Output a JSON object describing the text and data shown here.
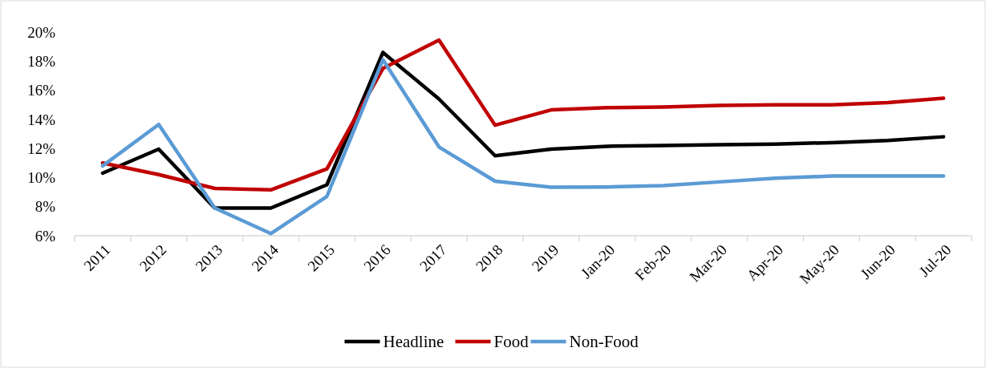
{
  "chart_data": {
    "type": "line",
    "categories": [
      "2011",
      "2012",
      "2013",
      "2014",
      "2015",
      "2016",
      "2017",
      "2018",
      "2019",
      "Jan-20",
      "Feb-20",
      "Mar-20",
      "Apr-20",
      "May-20",
      "Jun-20",
      "Jul-20"
    ],
    "series": [
      {
        "name": "Headline",
        "color": "#000000",
        "values": [
          10.3,
          11.95,
          7.9,
          7.9,
          9.5,
          18.6,
          15.4,
          11.5,
          11.95,
          12.15,
          12.2,
          12.25,
          12.3,
          12.4,
          12.55,
          12.8
        ]
      },
      {
        "name": "Food",
        "color": "#c00000",
        "values": [
          11.0,
          10.2,
          9.25,
          9.15,
          10.6,
          17.5,
          19.45,
          13.6,
          14.65,
          14.8,
          14.85,
          14.95,
          15.0,
          15.0,
          15.15,
          15.45
        ]
      },
      {
        "name": "Non-Food",
        "color": "#5b9bd5",
        "values": [
          10.8,
          13.65,
          7.9,
          6.15,
          8.7,
          18.1,
          12.1,
          9.75,
          9.33,
          9.35,
          9.45,
          9.7,
          9.95,
          10.1,
          10.1,
          10.1
        ]
      }
    ],
    "ylim": [
      6,
      20
    ],
    "yticks": [
      {
        "value": 6,
        "label": "6%"
      },
      {
        "value": 8,
        "label": "8%"
      },
      {
        "value": 10,
        "label": "10%"
      },
      {
        "value": 12,
        "label": "12%"
      },
      {
        "value": 14,
        "label": "14%"
      },
      {
        "value": 16,
        "label": "16%"
      },
      {
        "value": 18,
        "label": "18%"
      },
      {
        "value": 20,
        "label": "20%"
      }
    ],
    "grid": false,
    "legend": "bottom",
    "marker": "none",
    "line_style": "solid"
  }
}
